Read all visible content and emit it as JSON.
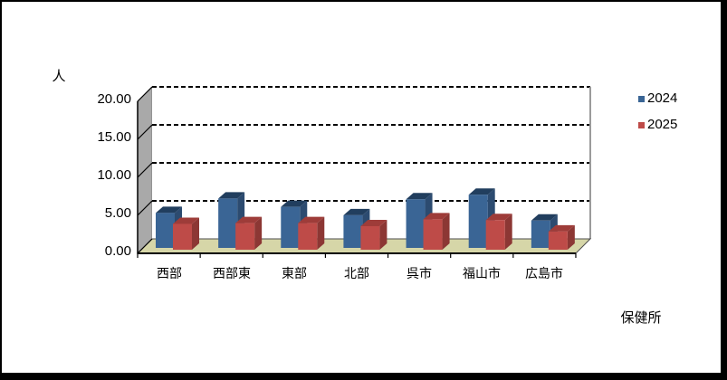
{
  "window": {
    "background": "#FFFFFF",
    "frame_border_color": "#000000"
  },
  "chart_data": {
    "type": "bar",
    "style": "3d-clustered-column",
    "title": "",
    "xlabel": "保健所",
    "ylabel": "人",
    "categories": [
      "西部",
      "西部東",
      "東部",
      "北部",
      "呉市",
      "福山市",
      "広島市"
    ],
    "series": [
      {
        "name": "2024",
        "values": [
          4.6,
          6.5,
          5.4,
          4.3,
          6.4,
          7.0,
          3.6
        ],
        "color_front": "#3A6595",
        "color_top": "#213E5E",
        "color_side": "#2C4B70"
      },
      {
        "name": "2025",
        "values": [
          3.4,
          3.5,
          3.5,
          3.1,
          4.0,
          3.9,
          2.4
        ],
        "color_front": "#BE4B48",
        "color_top": "#9E3C39",
        "color_side": "#8C3734"
      }
    ],
    "y_axis": {
      "min": 0,
      "max": 20,
      "step": 5,
      "tick_labels_top_to_bottom": [
        "20.00",
        "15.00",
        "10.00",
        "5.00",
        "0.00"
      ]
    },
    "legend": {
      "position": "right",
      "entries": [
        "2024",
        "2025"
      ]
    },
    "grid": "dashed-horizontal",
    "colors": {
      "wall_side": "#A9A9A9",
      "wall_back": "#FFFFFF",
      "floor": "#D6D6A8",
      "gridline": "#000000",
      "axis_line": "#000000"
    }
  }
}
